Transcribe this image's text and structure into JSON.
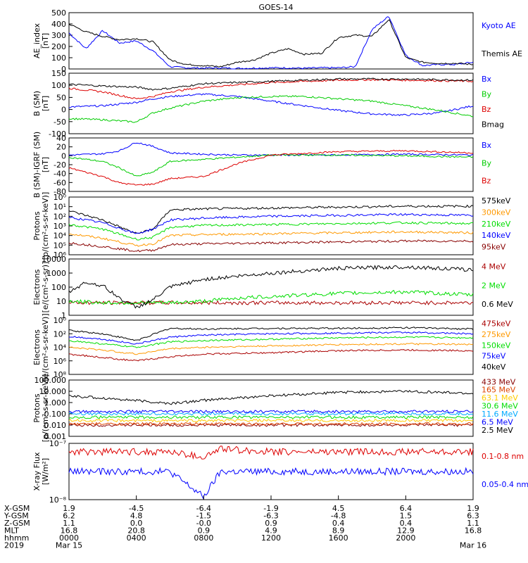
{
  "title": "GOES-14",
  "chart_data": [
    {
      "type": "line",
      "ylabel": "AE_index\n[nT]",
      "ylim": [
        0,
        500
      ],
      "yticks": [
        "0",
        "100",
        "200",
        "300",
        "400",
        "500"
      ],
      "series": [
        {
          "name": "Kyoto AE",
          "color": "#0000ff",
          "x_hours": [
            0,
            1,
            2,
            3,
            4,
            5,
            6,
            7,
            8,
            9,
            10,
            11,
            12,
            13,
            14,
            15,
            16,
            17,
            18,
            19,
            20,
            21,
            22,
            23,
            24
          ],
          "values": [
            320,
            180,
            340,
            230,
            250,
            160,
            20,
            10,
            8,
            10,
            5,
            8,
            10,
            10,
            6,
            10,
            10,
            20,
            350,
            470,
            120,
            30,
            40,
            40,
            60
          ]
        },
        {
          "name": "Themis AE",
          "color": "#000000",
          "x_hours": [
            0,
            1,
            2,
            3,
            4,
            5,
            6,
            7,
            8,
            9,
            10,
            11,
            12,
            13,
            14,
            15,
            16,
            17,
            18,
            19,
            20,
            21,
            22,
            23,
            24
          ],
          "values": [
            400,
            330,
            290,
            260,
            270,
            240,
            80,
            40,
            30,
            20,
            60,
            80,
            140,
            180,
            130,
            140,
            280,
            300,
            290,
            440,
            100,
            60,
            50,
            50,
            40
          ]
        }
      ]
    },
    {
      "type": "line",
      "ylabel": "B (SM)\n[nT]",
      "ylim": [
        -120,
        140
      ],
      "yticks": [
        "150",
        "100",
        "50",
        "0",
        "-50",
        "-100"
      ],
      "series": [
        {
          "name": "Bx",
          "color": "#0000ff",
          "x_hours": [
            0,
            2,
            4,
            5,
            6,
            8,
            10,
            12,
            14,
            16,
            18,
            20,
            22,
            24
          ],
          "values": [
            -5,
            0,
            15,
            30,
            40,
            50,
            40,
            20,
            0,
            -20,
            -35,
            -40,
            -30,
            0
          ]
        },
        {
          "name": "By",
          "color": "#00cc00",
          "x_hours": [
            0,
            2,
            4,
            5,
            6,
            8,
            10,
            12,
            14,
            16,
            18,
            20,
            22,
            24
          ],
          "values": [
            -55,
            -60,
            -70,
            -30,
            -10,
            20,
            35,
            40,
            40,
            30,
            20,
            0,
            -20,
            -45
          ]
        },
        {
          "name": "Bz",
          "color": "#dd0000",
          "x_hours": [
            0,
            2,
            4,
            5,
            6,
            8,
            10,
            12,
            14,
            16,
            18,
            20,
            22,
            24
          ],
          "values": [
            75,
            60,
            30,
            40,
            60,
            80,
            90,
            100,
            105,
            110,
            112,
            110,
            108,
            105
          ]
        },
        {
          "name": "Bmag",
          "color": "#000000",
          "x_hours": [
            0,
            2,
            4,
            5,
            6,
            8,
            10,
            12,
            14,
            16,
            18,
            20,
            22,
            24
          ],
          "values": [
            92,
            85,
            80,
            70,
            75,
            95,
            100,
            105,
            110,
            115,
            115,
            115,
            112,
            110
          ]
        }
      ]
    },
    {
      "type": "line",
      "ylabel": "B (SM)-IGRF (SM)\n[nT]",
      "ylim": [
        -85,
        40
      ],
      "yticks": [
        "40",
        "20",
        "0",
        "-20",
        "-40",
        "-60",
        "-80"
      ],
      "series": [
        {
          "name": "Bx",
          "color": "#0000ff",
          "x_hours": [
            0,
            2,
            3,
            4,
            5,
            6,
            8,
            10,
            12,
            16,
            20,
            24
          ],
          "values": [
            0,
            3,
            10,
            30,
            20,
            5,
            2,
            0,
            0,
            0,
            2,
            0
          ]
        },
        {
          "name": "By",
          "color": "#00cc00",
          "x_hours": [
            0,
            2,
            3,
            4,
            5,
            6,
            8,
            10,
            12,
            16,
            20,
            24
          ],
          "values": [
            -5,
            -15,
            -30,
            -50,
            -40,
            -15,
            -10,
            -5,
            0,
            0,
            -2,
            -5
          ]
        },
        {
          "name": "Bz",
          "color": "#dd0000",
          "x_hours": [
            0,
            2,
            3,
            4,
            5,
            6,
            8,
            10,
            12,
            16,
            20,
            24
          ],
          "values": [
            -30,
            -50,
            -65,
            -70,
            -68,
            -55,
            -50,
            -20,
            0,
            8,
            10,
            5
          ]
        }
      ]
    },
    {
      "type": "line",
      "ylabel": "Protons\n[p/(cm²-s-sr-keV)]",
      "log_scale": true,
      "ylim_log10": [
        -0.3,
        6
      ],
      "yticks": [
        "10⁰",
        "10¹",
        "10²",
        "10³",
        "10⁴",
        "10⁵",
        "10⁶"
      ],
      "series": [
        {
          "name": "575keV",
          "color": "#000000",
          "x_hours": [
            0,
            2,
            4,
            5,
            6,
            8,
            12,
            16,
            20,
            24
          ],
          "values_log10": [
            4.5,
            3.5,
            2.0,
            2.5,
            4.6,
            4.7,
            4.8,
            4.9,
            5.0,
            5.0
          ]
        },
        {
          "name": "300keV",
          "color": "#ff9900",
          "x_hours": [
            0,
            2,
            4,
            5,
            6,
            8,
            12,
            16,
            20,
            24
          ],
          "values_log10": [
            2.0,
            1.5,
            0.7,
            0.9,
            1.8,
            1.9,
            2.0,
            2.1,
            2.2,
            2.1
          ]
        },
        {
          "name": "210keV",
          "color": "#00dd00",
          "x_hours": [
            0,
            2,
            4,
            5,
            6,
            8,
            12,
            16,
            20,
            24
          ],
          "values_log10": [
            3.0,
            2.5,
            1.4,
            1.6,
            2.7,
            2.9,
            3.0,
            3.1,
            3.2,
            3.1
          ]
        },
        {
          "name": "140keV",
          "color": "#0000ff",
          "x_hours": [
            0,
            2,
            4,
            5,
            6,
            8,
            12,
            16,
            20,
            24
          ],
          "values_log10": [
            3.8,
            3.2,
            2.0,
            2.5,
            3.5,
            3.7,
            3.9,
            4.0,
            4.1,
            4.0
          ]
        },
        {
          "name": "95keV",
          "color": "#880000",
          "x_hours": [
            0,
            2,
            4,
            5,
            6,
            8,
            12,
            16,
            20,
            24
          ],
          "values_log10": [
            1.0,
            0.6,
            0.1,
            0.2,
            0.8,
            0.9,
            1.0,
            1.1,
            1.2,
            1.2
          ]
        }
      ]
    },
    {
      "type": "line",
      "ylabel": "Electrons\n[e/(cm²-s-sr)]",
      "log_scale": true,
      "ylim_log10": [
        0.5,
        4.1
      ],
      "yticks": [
        "1",
        "10",
        "100",
        "1000",
        "10000"
      ],
      "series": [
        {
          "name": "4 MeV",
          "color": "#aa0000",
          "x_hours": [
            0,
            4,
            8,
            12,
            16,
            20,
            24
          ],
          "values_log10": [
            1.3,
            1.3,
            1.3,
            1.3,
            1.3,
            1.3,
            1.3
          ]
        },
        {
          "name": "2 MeV",
          "color": "#00dd00",
          "x_hours": [
            0,
            2,
            4,
            6,
            8,
            10,
            12,
            16,
            20,
            24
          ],
          "values_log10": [
            1.4,
            1.3,
            1.3,
            1.3,
            1.4,
            1.6,
            1.7,
            1.9,
            2.0,
            1.8
          ]
        },
        {
          "name": "0.6 MeV",
          "color": "#000000",
          "x_hours": [
            0,
            1,
            2,
            3,
            4,
            5,
            6,
            8,
            12,
            16,
            20,
            24
          ],
          "values_log10": [
            2.0,
            2.6,
            2.4,
            1.6,
            1.0,
            1.5,
            2.3,
            2.8,
            3.2,
            3.5,
            3.6,
            3.4
          ]
        }
      ]
    },
    {
      "type": "line",
      "ylabel": "Electrons\n[e/(cm²-s-sr-keV)]",
      "log_scale": true,
      "ylim_log10": [
        0,
        8
      ],
      "yticks": [
        "10⁰",
        "10²",
        "10⁴",
        "10⁶",
        "10⁸"
      ],
      "series": [
        {
          "name": "475keV",
          "color": "#aa0000",
          "x_hours": [
            0,
            2,
            4,
            6,
            8,
            12,
            16,
            20,
            24
          ],
          "values_log10": [
            3.0,
            2.5,
            2.0,
            2.6,
            3.0,
            3.2,
            3.5,
            3.6,
            3.5
          ]
        },
        {
          "name": "275keV",
          "color": "#ff9900",
          "x_hours": [
            0,
            2,
            4,
            6,
            8,
            12,
            16,
            20,
            24
          ],
          "values_log10": [
            4.0,
            3.6,
            3.0,
            3.8,
            4.0,
            4.2,
            4.4,
            4.5,
            4.4
          ]
        },
        {
          "name": "150keV",
          "color": "#00dd00",
          "x_hours": [
            0,
            2,
            4,
            6,
            8,
            12,
            16,
            20,
            24
          ],
          "values_log10": [
            5.0,
            4.5,
            4.0,
            4.8,
            5.0,
            5.2,
            5.4,
            5.5,
            5.4
          ]
        },
        {
          "name": "75keV",
          "color": "#0000ff",
          "x_hours": [
            0,
            2,
            4,
            6,
            8,
            12,
            16,
            20,
            24
          ],
          "values_log10": [
            5.6,
            5.2,
            4.5,
            5.5,
            5.8,
            6.0,
            6.1,
            6.2,
            6.0
          ]
        },
        {
          "name": "40keV",
          "color": "#000000",
          "x_hours": [
            0,
            2,
            4,
            6,
            8,
            12,
            16,
            20,
            24
          ],
          "values_log10": [
            6.5,
            6.0,
            5.0,
            6.8,
            6.7,
            6.8,
            6.8,
            6.9,
            6.7
          ]
        }
      ]
    },
    {
      "type": "line",
      "ylabel": "Protons\n[p/(cm²-s-sr-keV)]",
      "log_scale": true,
      "ylim_log10": [
        -3,
        2
      ],
      "yticks": [
        "100.000",
        "10.000",
        "1.000",
        "0.100",
        "0.010",
        "0.001"
      ],
      "series": [
        {
          "name": "433 MeV",
          "color": "#880000",
          "x_hours": [
            0,
            8,
            16,
            24
          ],
          "values_log10": [
            -2.0,
            -2.0,
            -2.0,
            -2.0
          ]
        },
        {
          "name": "165 MeV",
          "color": "#dd4400",
          "x_hours": [
            0,
            8,
            16,
            24
          ],
          "values_log10": [
            -1.9,
            -1.9,
            -1.9,
            -1.9
          ]
        },
        {
          "name": "63.1 MeV",
          "color": "#ffcc00",
          "x_hours": [
            0,
            8,
            16,
            24
          ],
          "values_log10": [
            -1.6,
            -1.6,
            -1.6,
            -1.6
          ]
        },
        {
          "name": "30.6 MeV",
          "color": "#00dd00",
          "x_hours": [
            0,
            8,
            16,
            24
          ],
          "values_log10": [
            -1.3,
            -1.3,
            -1.3,
            -1.3
          ]
        },
        {
          "name": "11.6 MeV",
          "color": "#00aaff",
          "x_hours": [
            0,
            8,
            16,
            24
          ],
          "values_log10": [
            -1.0,
            -1.0,
            -1.0,
            -1.0
          ]
        },
        {
          "name": "6.5 MeV",
          "color": "#0000ff",
          "x_hours": [
            0,
            8,
            16,
            24
          ],
          "values_log10": [
            -0.8,
            -0.8,
            -0.8,
            -0.8
          ]
        },
        {
          "name": "2.5 MeV",
          "color": "#000000",
          "x_hours": [
            0,
            3,
            6,
            8,
            12,
            16,
            20,
            24
          ],
          "values_log10": [
            0.6,
            0.3,
            -0.1,
            0.2,
            0.6,
            0.9,
            1.0,
            0.8
          ]
        }
      ]
    },
    {
      "type": "line",
      "ylabel": "X-ray Flux\n[W/m²]",
      "log_scale": true,
      "ylim_log10": [
        -9,
        -7
      ],
      "yticks": [
        "10⁻⁷",
        "10⁻⁸"
      ],
      "series": [
        {
          "name": "0.1-0.8 nm",
          "color": "#dd0000",
          "x_hours": [
            0,
            6,
            8,
            9,
            12,
            16,
            20,
            24
          ],
          "values_log10": [
            -7.3,
            -7.3,
            -7.5,
            -7.2,
            -7.3,
            -7.3,
            -7.3,
            -7.3
          ]
        },
        {
          "name": "0.05-0.4 nm",
          "color": "#0000ff",
          "x_hours": [
            0,
            6,
            8,
            9,
            12,
            16,
            20,
            24
          ],
          "values_log10": [
            -8.0,
            -8.0,
            -8.9,
            -8.0,
            -8.0,
            -8.0,
            -8.0,
            -8.0
          ]
        }
      ]
    }
  ],
  "axis_table": {
    "labels": [
      "X-GSM",
      "Y-GSM",
      "Z-GSM",
      "MLT",
      "hhmm",
      "2019"
    ],
    "columns": [
      [
        "1.9",
        "6.2",
        "1.1",
        "16.8",
        "0000",
        "Mar 15"
      ],
      [
        "-4.5",
        "4.8",
        "0.0",
        "20.8",
        "0400",
        ""
      ],
      [
        "-6.4",
        "-1.5",
        "-0.0",
        "0.9",
        "0800",
        ""
      ],
      [
        "-1.9",
        "-6.3",
        "0.9",
        "4.9",
        "1200",
        ""
      ],
      [
        "4.5",
        "-4.8",
        "0.4",
        "8.9",
        "1600",
        ""
      ],
      [
        "6.4",
        "1.5",
        "0.4",
        "12.9",
        "2000",
        ""
      ],
      [
        "1.9",
        "6.3",
        "1.1",
        "16.8",
        "",
        "Mar 16"
      ]
    ]
  }
}
